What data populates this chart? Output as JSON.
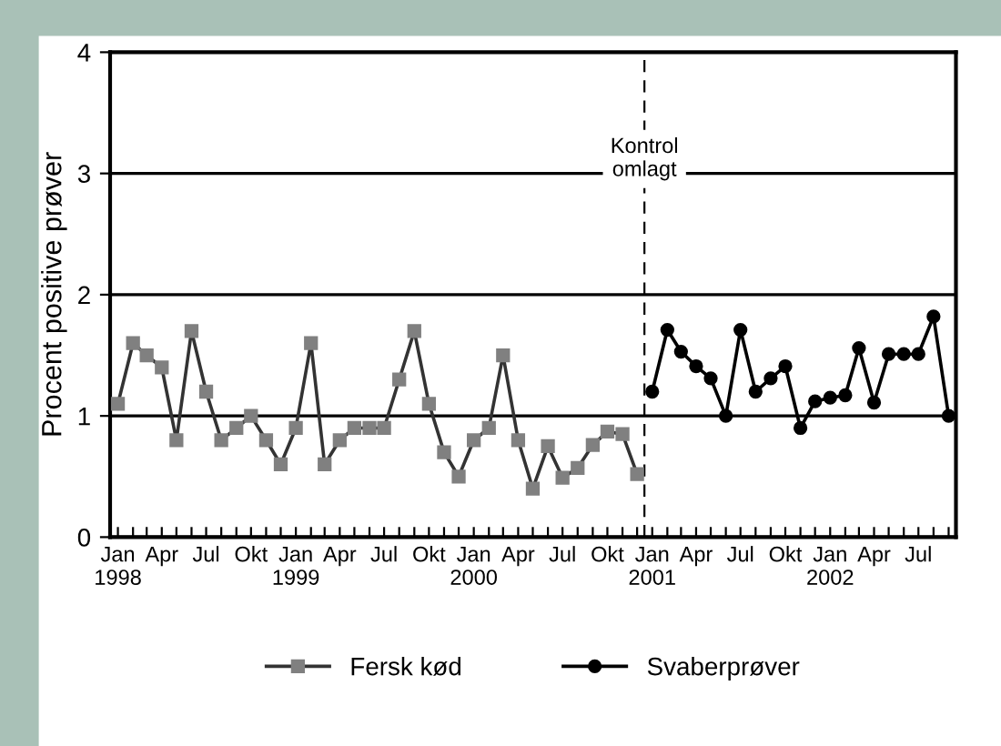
{
  "chart_data": {
    "type": "line",
    "ylabel": "Procent positive prøver",
    "xlim": [
      "1997-12-16",
      "2002-09-16"
    ],
    "xticks": [
      {
        "value": "1998-01",
        "label": "Jan\n1998"
      },
      {
        "value": "1998-02",
        "label": null
      },
      {
        "value": "1998-03",
        "label": null
      },
      {
        "value": "1998-04",
        "label": "Apr"
      },
      {
        "value": "1998-05",
        "label": null
      },
      {
        "value": "1998-06",
        "label": null
      },
      {
        "value": "1998-07",
        "label": "Jul"
      },
      {
        "value": "1998-08",
        "label": null
      },
      {
        "value": "1998-09",
        "label": null
      },
      {
        "value": "1998-10",
        "label": "Okt"
      },
      {
        "value": "1998-11",
        "label": null
      },
      {
        "value": "1998-12",
        "label": null
      },
      {
        "value": "1999-01",
        "label": "Jan\n1999"
      },
      {
        "value": "1999-02",
        "label": null
      },
      {
        "value": "1999-03",
        "label": null
      },
      {
        "value": "1999-04",
        "label": "Apr"
      },
      {
        "value": "1999-05",
        "label": null
      },
      {
        "value": "1999-06",
        "label": null
      },
      {
        "value": "1999-07",
        "label": "Jul"
      },
      {
        "value": "1999-08",
        "label": null
      },
      {
        "value": "1999-09",
        "label": null
      },
      {
        "value": "1999-10",
        "label": "Okt"
      },
      {
        "value": "1999-11",
        "label": null
      },
      {
        "value": "1999-12",
        "label": null
      },
      {
        "value": "2000-01",
        "label": "Jan\n2000"
      },
      {
        "value": "2000-02",
        "label": null
      },
      {
        "value": "2000-03",
        "label": null
      },
      {
        "value": "2000-04",
        "label": "Apr"
      },
      {
        "value": "2000-05",
        "label": null
      },
      {
        "value": "2000-06",
        "label": null
      },
      {
        "value": "2000-07",
        "label": "Jul"
      },
      {
        "value": "2000-08",
        "label": null
      },
      {
        "value": "2000-09",
        "label": null
      },
      {
        "value": "2000-10",
        "label": "Okt"
      },
      {
        "value": "2000-11",
        "label": null
      },
      {
        "value": "2000-12",
        "label": null
      },
      {
        "value": "2001-01",
        "label": "Jan\n2001"
      },
      {
        "value": "2001-02",
        "label": null
      },
      {
        "value": "2001-03",
        "label": null
      },
      {
        "value": "2001-04",
        "label": "Apr"
      },
      {
        "value": "2001-05",
        "label": null
      },
      {
        "value": "2001-06",
        "label": null
      },
      {
        "value": "2001-07",
        "label": "Jul"
      },
      {
        "value": "2001-08",
        "label": null
      },
      {
        "value": "2001-09",
        "label": null
      },
      {
        "value": "2001-10",
        "label": "Okt"
      },
      {
        "value": "2001-11",
        "label": null
      },
      {
        "value": "2001-12",
        "label": null
      },
      {
        "value": "2002-01",
        "label": "Jan\n2002"
      },
      {
        "value": "2002-02",
        "label": null
      },
      {
        "value": "2002-03",
        "label": null
      },
      {
        "value": "2002-04",
        "label": "Apr"
      },
      {
        "value": "2002-05",
        "label": null
      },
      {
        "value": "2002-06",
        "label": null
      },
      {
        "value": "2002-07",
        "label": "Jul"
      },
      {
        "value": "2002-08",
        "label": null
      },
      {
        "value": "2002-09",
        "label": null
      }
    ],
    "ylim": [
      0,
      4
    ],
    "yticks": [
      0,
      1,
      2,
      3,
      4
    ],
    "grid": "y",
    "legend": "bottom",
    "ref_lines": [
      {
        "axis": "x",
        "value": "2000-12-16",
        "label": "Kontrol\nomlagt",
        "color": "#000000",
        "line_style": "dashed"
      }
    ],
    "series": [
      {
        "name": "Fersk kød",
        "color": "#808080",
        "marker": "square",
        "x": [
          "1998-01",
          "1998-02",
          "1998-03",
          "1998-04",
          "1998-05",
          "1998-06",
          "1998-07",
          "1998-08",
          "1998-09",
          "1998-10",
          "1998-11",
          "1998-12",
          "1999-01",
          "1999-02",
          "1999-03",
          "1999-04",
          "1999-05",
          "1999-06",
          "1999-07",
          "1999-08",
          "1999-09",
          "1999-10",
          "1999-11",
          "1999-12",
          "2000-01",
          "2000-02",
          "2000-03",
          "2000-04",
          "2000-05",
          "2000-06",
          "2000-07",
          "2000-08",
          "2000-09",
          "2000-10",
          "2000-11",
          "2000-12"
        ],
        "values": [
          1.1,
          1.6,
          1.5,
          1.4,
          0.8,
          1.7,
          1.2,
          0.8,
          0.9,
          1.0,
          0.8,
          0.6,
          0.9,
          1.6,
          0.6,
          0.8,
          0.9,
          0.9,
          0.9,
          1.3,
          1.7,
          1.1,
          0.7,
          0.5,
          0.8,
          0.9,
          1.5,
          0.8,
          0.4,
          0.75,
          0.49,
          0.57,
          0.76,
          0.87,
          0.85,
          0.52
        ]
      },
      {
        "name": "Svaberprøver",
        "color": "#000000",
        "marker": "circle",
        "x": [
          "2001-01",
          "2001-02",
          "2001-03",
          "2001-04",
          "2001-05",
          "2001-06",
          "2001-07",
          "2001-08",
          "2001-09",
          "2001-10",
          "2001-11",
          "2001-12",
          "2002-01",
          "2002-02",
          "2002-03",
          "2002-04",
          "2002-05",
          "2002-06",
          "2002-07",
          "2002-08",
          "2002-09"
        ],
        "values": [
          1.2,
          1.71,
          1.53,
          1.41,
          1.31,
          1.0,
          1.71,
          1.2,
          1.31,
          1.41,
          0.9,
          1.12,
          1.15,
          1.17,
          1.56,
          1.11,
          1.51,
          1.51,
          1.51,
          1.82,
          1.0
        ]
      }
    ]
  }
}
